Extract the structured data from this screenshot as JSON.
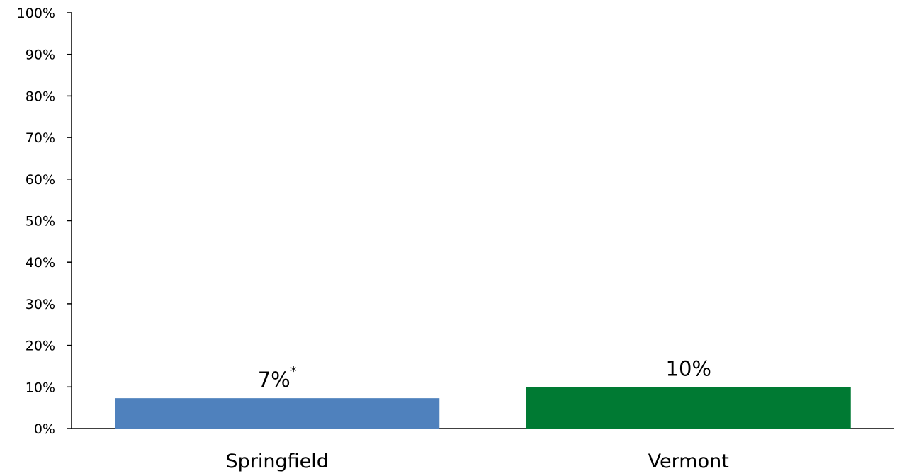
{
  "chart_data": {
    "type": "bar",
    "title": "",
    "xlabel": "",
    "ylabel": "",
    "ylim": [
      0,
      100
    ],
    "y_unit": "%",
    "yticks": [
      "0%",
      "10%",
      "20%",
      "30%",
      "40%",
      "50%",
      "60%",
      "70%",
      "80%",
      "90%",
      "100%"
    ],
    "categories": [
      "Springfield",
      "Vermont"
    ],
    "values": [
      7.3,
      10.0
    ],
    "data_labels": [
      "7%",
      "10%"
    ],
    "data_label_marks": [
      "*",
      ""
    ],
    "colors": [
      "#4f81bd",
      "#007a33"
    ],
    "grid": false,
    "legend": "none"
  }
}
